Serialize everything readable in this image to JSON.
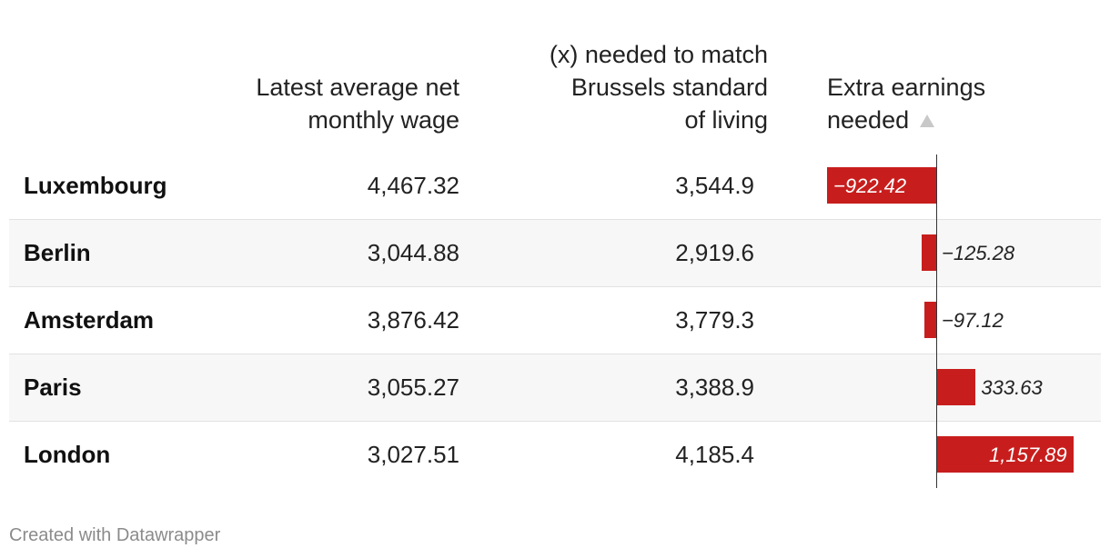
{
  "columns": {
    "wage_header": [
      "Latest average net",
      "monthly wage"
    ],
    "needed_header": [
      "(x) needed to match",
      "Brussels standard",
      "of living"
    ],
    "extra_header": [
      "Extra earnings",
      "needed"
    ]
  },
  "rows": [
    {
      "city": "Luxembourg",
      "wage": "4,467.32",
      "needed": "3,544.9",
      "extra": "−922.42"
    },
    {
      "city": "Berlin",
      "wage": "3,044.88",
      "needed": "2,919.6",
      "extra": "−125.28"
    },
    {
      "city": "Amsterdam",
      "wage": "3,876.42",
      "needed": "3,779.3",
      "extra": "−97.12"
    },
    {
      "city": "Paris",
      "wage": "3,055.27",
      "needed": "3,388.9",
      "extra": "333.63"
    },
    {
      "city": "London",
      "wage": "3,027.51",
      "needed": "4,185.4",
      "extra": "1,157.89"
    }
  ],
  "chart_data": {
    "type": "bar",
    "categories": [
      "Luxembourg",
      "Berlin",
      "Amsterdam",
      "Paris",
      "London"
    ],
    "values": [
      -922.42,
      -125.28,
      -97.12,
      333.63,
      1157.89
    ],
    "bar_color": "#c71e1d",
    "sort": "ascending"
  },
  "footer": "Created with Datawrapper"
}
